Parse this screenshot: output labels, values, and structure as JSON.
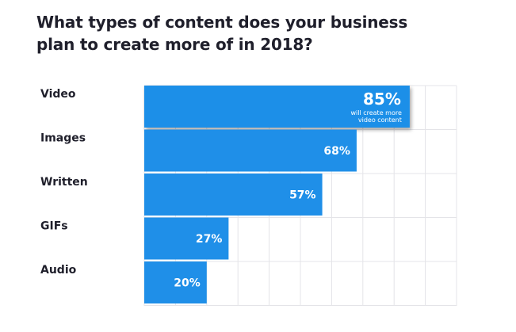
{
  "title": "What types of content does your business plan to create more of in 2018?",
  "colors": {
    "bar": "#1f8fe8",
    "highlight_bar": "#1f8fe8",
    "grid": "#e4e4e8",
    "text": "#1f1f2b"
  },
  "chart_data": {
    "type": "bar",
    "orientation": "horizontal",
    "title": "What types of content does your business plan to create more of in 2018?",
    "categories": [
      "Video",
      "Images",
      "Written",
      "GIFs",
      "Audio"
    ],
    "values": [
      85,
      68,
      57,
      27,
      20
    ],
    "value_labels": [
      "85%",
      "68%",
      "57%",
      "27%",
      "20%"
    ],
    "annotation": {
      "category": "Video",
      "lines": [
        "will create more",
        "video content"
      ]
    },
    "xlim": [
      0,
      100
    ],
    "grid": true,
    "legend": "none"
  }
}
